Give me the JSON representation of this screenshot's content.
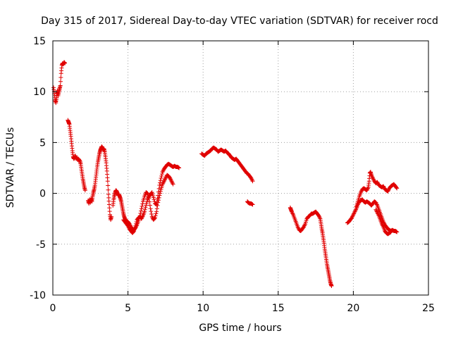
{
  "chart_data": {
    "type": "scatter",
    "title": "Day 315 of 2017, Sidereal Day-to-day VTEC variation (SDTVAR) for receiver rocd",
    "xlabel": "GPS time / hours",
    "ylabel": "SDTVAR / TECUs",
    "xlim": [
      0,
      25
    ],
    "ylim": [
      -10,
      15
    ],
    "xticks": [
      0,
      5,
      10,
      15,
      20,
      25
    ],
    "yticks": [
      -10,
      -5,
      0,
      5,
      10,
      15
    ],
    "grid": true,
    "marker": "+",
    "color": "#e00000",
    "segments": [
      [
        [
          0.05,
          10.4
        ],
        [
          0.1,
          9.8
        ],
        [
          0.15,
          9.2
        ],
        [
          0.2,
          8.9
        ],
        [
          0.25,
          9.4
        ],
        [
          0.3,
          10.1
        ],
        [
          0.35,
          9.6
        ],
        [
          0.4,
          10.0
        ],
        [
          0.45,
          10.3
        ],
        [
          0.5,
          10.6
        ],
        [
          0.55,
          11.8
        ],
        [
          0.6,
          12.6
        ],
        [
          0.65,
          12.8
        ],
        [
          0.7,
          12.7
        ],
        [
          0.75,
          12.9
        ],
        [
          0.8,
          12.8
        ]
      ],
      [
        [
          1.0,
          7.2
        ],
        [
          1.05,
          7.0
        ],
        [
          1.1,
          6.8
        ],
        [
          1.15,
          6.2
        ],
        [
          1.2,
          5.6
        ],
        [
          1.25,
          4.9
        ],
        [
          1.3,
          4.2
        ],
        [
          1.35,
          3.6
        ],
        [
          1.4,
          3.4
        ],
        [
          1.45,
          3.5
        ],
        [
          1.5,
          3.7
        ],
        [
          1.55,
          3.4
        ],
        [
          1.6,
          3.5
        ],
        [
          1.65,
          3.3
        ],
        [
          1.7,
          3.4
        ],
        [
          1.8,
          3.2
        ],
        [
          1.85,
          2.9
        ],
        [
          1.9,
          2.4
        ],
        [
          1.95,
          1.9
        ],
        [
          2.0,
          1.4
        ],
        [
          2.05,
          1.0
        ],
        [
          2.1,
          0.6
        ],
        [
          2.15,
          0.3
        ]
      ],
      [
        [
          2.35,
          -0.7
        ],
        [
          2.4,
          -1.0
        ],
        [
          2.45,
          -0.6
        ],
        [
          2.5,
          -0.9
        ],
        [
          2.55,
          -0.5
        ],
        [
          2.6,
          -0.8
        ],
        [
          2.65,
          -0.3
        ],
        [
          2.7,
          0.1
        ],
        [
          2.75,
          0.4
        ],
        [
          2.8,
          0.8
        ],
        [
          2.85,
          1.4
        ],
        [
          2.9,
          2.0
        ],
        [
          2.95,
          2.6
        ],
        [
          3.0,
          3.1
        ],
        [
          3.05,
          3.5
        ],
        [
          3.1,
          3.9
        ],
        [
          3.15,
          4.2
        ],
        [
          3.2,
          4.4
        ],
        [
          3.25,
          4.6
        ],
        [
          3.3,
          4.5
        ],
        [
          3.35,
          4.3
        ],
        [
          3.4,
          4.4
        ],
        [
          3.45,
          4.1
        ],
        [
          3.5,
          3.6
        ],
        [
          3.55,
          3.0
        ],
        [
          3.6,
          2.2
        ],
        [
          3.65,
          1.2
        ],
        [
          3.7,
          -0.1
        ],
        [
          3.75,
          -1.1
        ],
        [
          3.8,
          -2.1
        ],
        [
          3.85,
          -2.6
        ],
        [
          3.9,
          -2.3
        ]
      ],
      [
        [
          4.0,
          -1.2
        ],
        [
          4.05,
          -0.6
        ],
        [
          4.1,
          -0.2
        ],
        [
          4.15,
          0.1
        ],
        [
          4.2,
          0.3
        ],
        [
          4.25,
          0.2
        ],
        [
          4.3,
          0.0
        ],
        [
          4.35,
          -0.2
        ],
        [
          4.4,
          -0.1
        ],
        [
          4.45,
          -0.3
        ],
        [
          4.5,
          -0.5
        ],
        [
          4.55,
          -0.8
        ],
        [
          4.6,
          -1.2
        ],
        [
          4.65,
          -1.6
        ],
        [
          4.7,
          -2.0
        ],
        [
          4.75,
          -2.3
        ],
        [
          4.8,
          -2.5
        ],
        [
          4.9,
          -2.7
        ],
        [
          5.0,
          -2.8
        ],
        [
          5.1,
          -3.0
        ],
        [
          5.2,
          -3.3
        ],
        [
          5.3,
          -3.5
        ],
        [
          5.4,
          -3.6
        ],
        [
          5.5,
          -3.4
        ],
        [
          5.6,
          -3.1
        ],
        [
          5.7,
          -2.7
        ],
        [
          5.8,
          -2.2
        ],
        [
          5.9,
          -1.5
        ],
        [
          6.0,
          -0.8
        ],
        [
          6.1,
          -0.3
        ],
        [
          6.2,
          0.1
        ],
        [
          6.3,
          0.0
        ],
        [
          6.4,
          -0.5
        ],
        [
          6.5,
          -1.5
        ],
        [
          6.6,
          -2.3
        ],
        [
          6.7,
          -2.6
        ],
        [
          6.8,
          -2.4
        ],
        [
          6.9,
          -1.8
        ],
        [
          7.0,
          -0.9
        ],
        [
          7.1,
          -0.2
        ],
        [
          7.2,
          0.4
        ],
        [
          7.3,
          0.9
        ],
        [
          7.4,
          1.2
        ],
        [
          7.5,
          1.5
        ],
        [
          7.6,
          1.8
        ],
        [
          7.7,
          1.7
        ],
        [
          7.8,
          1.5
        ],
        [
          7.9,
          1.2
        ],
        [
          8.0,
          0.9
        ]
      ],
      [
        [
          4.7,
          -2.6
        ],
        [
          4.8,
          -2.8
        ],
        [
          4.9,
          -3.0
        ],
        [
          5.0,
          -3.2
        ],
        [
          5.1,
          -3.5
        ],
        [
          5.2,
          -3.7
        ],
        [
          5.3,
          -3.9
        ],
        [
          5.4,
          -3.7
        ],
        [
          5.5,
          -3.2
        ],
        [
          5.6,
          -2.6
        ],
        [
          5.7,
          -2.4
        ],
        [
          5.8,
          -2.3
        ],
        [
          5.9,
          -2.5
        ],
        [
          6.0,
          -2.2
        ],
        [
          6.1,
          -1.8
        ],
        [
          6.2,
          -1.2
        ],
        [
          6.3,
          -0.6
        ],
        [
          6.4,
          -0.3
        ],
        [
          6.5,
          -0.1
        ],
        [
          6.6,
          0.1
        ],
        [
          6.7,
          -0.4
        ],
        [
          6.8,
          -1.0
        ],
        [
          6.9,
          -1.1
        ],
        [
          7.0,
          -0.2
        ],
        [
          7.1,
          0.8
        ],
        [
          7.2,
          1.5
        ],
        [
          7.3,
          2.1
        ],
        [
          7.4,
          2.4
        ],
        [
          7.5,
          2.6
        ],
        [
          7.6,
          2.8
        ],
        [
          7.7,
          2.9
        ],
        [
          7.8,
          2.8
        ],
        [
          7.9,
          2.7
        ],
        [
          8.0,
          2.6
        ],
        [
          8.1,
          2.7
        ],
        [
          8.2,
          2.6
        ],
        [
          8.3,
          2.6
        ],
        [
          8.4,
          2.5
        ]
      ],
      [
        [
          9.9,
          3.9
        ],
        [
          10.0,
          3.8
        ],
        [
          10.1,
          3.7
        ],
        [
          10.2,
          3.9
        ],
        [
          10.3,
          4.0
        ],
        [
          10.4,
          4.1
        ],
        [
          10.5,
          4.2
        ],
        [
          10.6,
          4.4
        ],
        [
          10.7,
          4.5
        ],
        [
          10.8,
          4.4
        ],
        [
          10.9,
          4.3
        ],
        [
          11.0,
          4.1
        ],
        [
          11.1,
          4.2
        ],
        [
          11.2,
          4.3
        ],
        [
          11.3,
          4.2
        ],
        [
          11.4,
          4.1
        ],
        [
          11.5,
          4.2
        ],
        [
          11.6,
          4.0
        ],
        [
          11.7,
          3.9
        ],
        [
          11.8,
          3.7
        ],
        [
          11.9,
          3.5
        ],
        [
          12.0,
          3.4
        ],
        [
          12.1,
          3.3
        ],
        [
          12.2,
          3.4
        ],
        [
          12.3,
          3.2
        ],
        [
          12.4,
          3.0
        ],
        [
          12.5,
          2.8
        ],
        [
          12.6,
          2.6
        ],
        [
          12.7,
          2.4
        ],
        [
          12.8,
          2.2
        ],
        [
          12.9,
          2.0
        ],
        [
          13.0,
          1.9
        ],
        [
          13.1,
          1.7
        ],
        [
          13.2,
          1.5
        ],
        [
          13.3,
          1.2
        ]
      ],
      [
        [
          12.95,
          -0.8
        ],
        [
          13.0,
          -0.9
        ],
        [
          13.1,
          -1.0
        ],
        [
          13.2,
          -1.0
        ],
        [
          13.3,
          -1.1
        ]
      ],
      [
        [
          15.8,
          -1.4
        ],
        [
          15.85,
          -1.6
        ],
        [
          15.9,
          -1.8
        ],
        [
          16.0,
          -2.1
        ],
        [
          16.1,
          -2.5
        ],
        [
          16.2,
          -2.9
        ],
        [
          16.3,
          -3.3
        ],
        [
          16.4,
          -3.6
        ],
        [
          16.5,
          -3.7
        ],
        [
          16.6,
          -3.5
        ],
        [
          16.7,
          -3.3
        ],
        [
          16.8,
          -3.0
        ],
        [
          16.9,
          -2.5
        ],
        [
          17.0,
          -2.3
        ],
        [
          17.1,
          -2.2
        ],
        [
          17.2,
          -2.0
        ],
        [
          17.3,
          -2.0
        ],
        [
          17.4,
          -1.9
        ],
        [
          17.5,
          -1.8
        ],
        [
          17.6,
          -2.0
        ],
        [
          17.7,
          -2.2
        ],
        [
          17.8,
          -2.5
        ],
        [
          17.85,
          -3.0
        ],
        [
          17.9,
          -3.5
        ],
        [
          17.95,
          -3.9
        ],
        [
          18.0,
          -4.4
        ],
        [
          18.05,
          -4.9
        ],
        [
          18.1,
          -5.5
        ],
        [
          18.15,
          -6.0
        ],
        [
          18.2,
          -6.5
        ],
        [
          18.25,
          -7.0
        ],
        [
          18.3,
          -7.4
        ],
        [
          18.35,
          -7.8
        ],
        [
          18.4,
          -8.2
        ],
        [
          18.45,
          -8.6
        ],
        [
          18.5,
          -8.9
        ],
        [
          18.55,
          -9.1
        ]
      ],
      [
        [
          19.6,
          -2.9
        ],
        [
          19.7,
          -2.8
        ],
        [
          19.8,
          -2.6
        ],
        [
          19.9,
          -2.4
        ],
        [
          20.0,
          -2.1
        ],
        [
          20.1,
          -1.8
        ],
        [
          20.2,
          -1.5
        ],
        [
          20.3,
          -1.1
        ],
        [
          20.4,
          -0.8
        ],
        [
          20.5,
          -0.7
        ],
        [
          20.6,
          -0.6
        ],
        [
          20.7,
          -0.8
        ],
        [
          20.8,
          -0.9
        ],
        [
          20.9,
          -0.8
        ],
        [
          21.0,
          -0.9
        ],
        [
          21.1,
          -1.0
        ],
        [
          21.2,
          -1.2
        ],
        [
          21.3,
          -1.0
        ],
        [
          21.4,
          -0.8
        ],
        [
          21.5,
          -0.9
        ],
        [
          21.6,
          -1.2
        ],
        [
          21.7,
          -1.6
        ],
        [
          21.8,
          -2.0
        ],
        [
          21.9,
          -2.4
        ],
        [
          22.0,
          -2.8
        ],
        [
          22.1,
          -3.1
        ],
        [
          22.2,
          -3.3
        ],
        [
          22.3,
          -3.5
        ],
        [
          22.4,
          -3.6
        ],
        [
          22.5,
          -3.7
        ],
        [
          22.6,
          -3.6
        ],
        [
          22.7,
          -3.7
        ],
        [
          22.8,
          -3.7
        ],
        [
          22.9,
          -3.8
        ]
      ],
      [
        [
          20.2,
          -1.3
        ],
        [
          20.3,
          -0.8
        ],
        [
          20.4,
          -0.3
        ],
        [
          20.5,
          0.1
        ],
        [
          20.6,
          0.4
        ],
        [
          20.7,
          0.5
        ],
        [
          20.8,
          0.4
        ],
        [
          20.9,
          0.3
        ],
        [
          21.0,
          0.6
        ],
        [
          21.05,
          1.2
        ],
        [
          21.1,
          2.0
        ],
        [
          21.15,
          2.1
        ],
        [
          21.2,
          1.8
        ],
        [
          21.3,
          1.5
        ],
        [
          21.4,
          1.2
        ],
        [
          21.5,
          1.0
        ],
        [
          21.6,
          1.1
        ],
        [
          21.7,
          0.8
        ],
        [
          21.8,
          0.7
        ],
        [
          21.9,
          0.6
        ],
        [
          22.0,
          0.7
        ],
        [
          22.1,
          0.4
        ],
        [
          22.2,
          0.3
        ],
        [
          22.3,
          0.2
        ],
        [
          22.4,
          0.5
        ],
        [
          22.5,
          0.7
        ],
        [
          22.6,
          0.8
        ],
        [
          22.7,
          0.9
        ],
        [
          22.8,
          0.7
        ],
        [
          22.9,
          0.5
        ]
      ],
      [
        [
          21.5,
          -1.6
        ],
        [
          21.6,
          -1.9
        ],
        [
          21.7,
          -2.2
        ],
        [
          21.8,
          -2.6
        ],
        [
          21.9,
          -3.0
        ],
        [
          22.0,
          -3.3
        ],
        [
          22.1,
          -3.7
        ],
        [
          22.2,
          -3.9
        ],
        [
          22.3,
          -4.0
        ],
        [
          22.4,
          -3.9
        ],
        [
          22.5,
          -3.8
        ]
      ]
    ]
  }
}
